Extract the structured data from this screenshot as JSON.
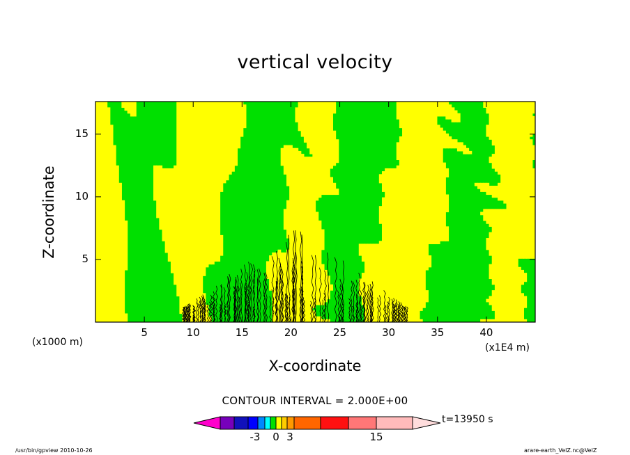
{
  "chart_data": {
    "type": "heatmap",
    "title": "vertical velocity",
    "xlabel": "X-coordinate",
    "ylabel": "Z-coordinate",
    "x_scale_label": "(x1E4 m)",
    "y_scale_label": "(x1000 m)",
    "xlim": [
      0,
      45
    ],
    "ylim": [
      0,
      17.6
    ],
    "x_ticks": [
      "5",
      "10",
      "15",
      "20",
      "25",
      "30",
      "35",
      "40"
    ],
    "y_ticks": [
      "5",
      "10",
      "15"
    ],
    "x_tick_values": [
      5,
      10,
      15,
      20,
      25,
      30,
      35,
      40
    ],
    "y_tick_values": [
      5,
      10,
      15
    ],
    "fill_colors": {
      "positive_band": "#ffff00",
      "negative_band": "#00e000",
      "contour_line": "#000000"
    },
    "turbulent_region_x": [
      9,
      32
    ],
    "contour_interval": "CONTOUR INTERVAL = 2.000E+00",
    "colorbar": {
      "labels": [
        "-3",
        "0",
        "3",
        "15"
      ],
      "label_values": [
        -3,
        0,
        3,
        15
      ],
      "colors": [
        "#ff00cc",
        "#7700bb",
        "#1111bb",
        "#0000ff",
        "#0088ff",
        "#00ffff",
        "#00e000",
        "#ffff00",
        "#ffcc00",
        "#ff9900",
        "#ff6600",
        "#ff1111",
        "#ff7777",
        "#ffbbbb",
        "#ffdddd"
      ]
    },
    "time_label": "t=13950 s"
  },
  "footer": {
    "left": "/usr/bin/gpview   2010-10-26",
    "right": "arare-earth_VelZ.nc@VelZ"
  }
}
